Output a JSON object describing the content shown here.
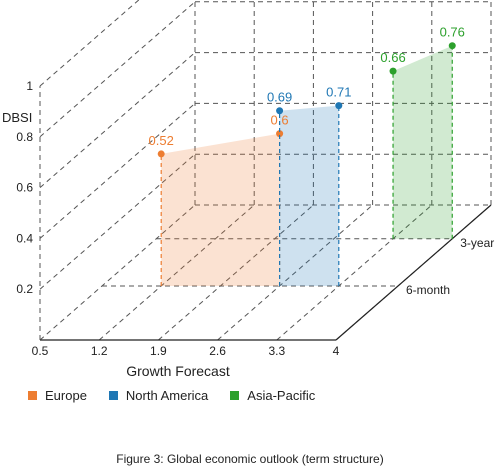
{
  "chart_data": {
    "type": "3d-line-area",
    "caption": "Figure 3: Global economic outlook (term structure)",
    "xlabel": "Growth Forecast",
    "ylabel": "DBSI",
    "x_ticks": [
      "0.5",
      "1.2",
      "1.9",
      "2.6",
      "3.3",
      "4"
    ],
    "y_ticks": [
      "0.2",
      "0.4",
      "0.6",
      "0.8",
      "1"
    ],
    "z_ticks": [
      "6-month",
      "3-year"
    ],
    "xlim": [
      0.5,
      4
    ],
    "ylim": [
      0,
      1
    ],
    "colors": {
      "Europe": "#ed7d31",
      "North America": "#1f77b4",
      "Asia-Pacific": "#2ca02c"
    },
    "series": [
      {
        "name": "Europe",
        "x": [
          1.2,
          2.6
        ],
        "y": [
          0.52,
          0.6
        ],
        "labels": [
          "0.52",
          "0.6"
        ],
        "z_index": 0
      },
      {
        "name": "North America",
        "x": [
          2.6,
          3.3
        ],
        "y": [
          0.69,
          0.71
        ],
        "labels": [
          "0.69",
          "0.71"
        ],
        "z_index": 0
      },
      {
        "name": "Asia-Pacific",
        "x": [
          3.3,
          4
        ],
        "y": [
          0.66,
          0.76
        ],
        "labels": [
          "0.66",
          "0.76"
        ],
        "z_index": 1
      }
    ]
  }
}
